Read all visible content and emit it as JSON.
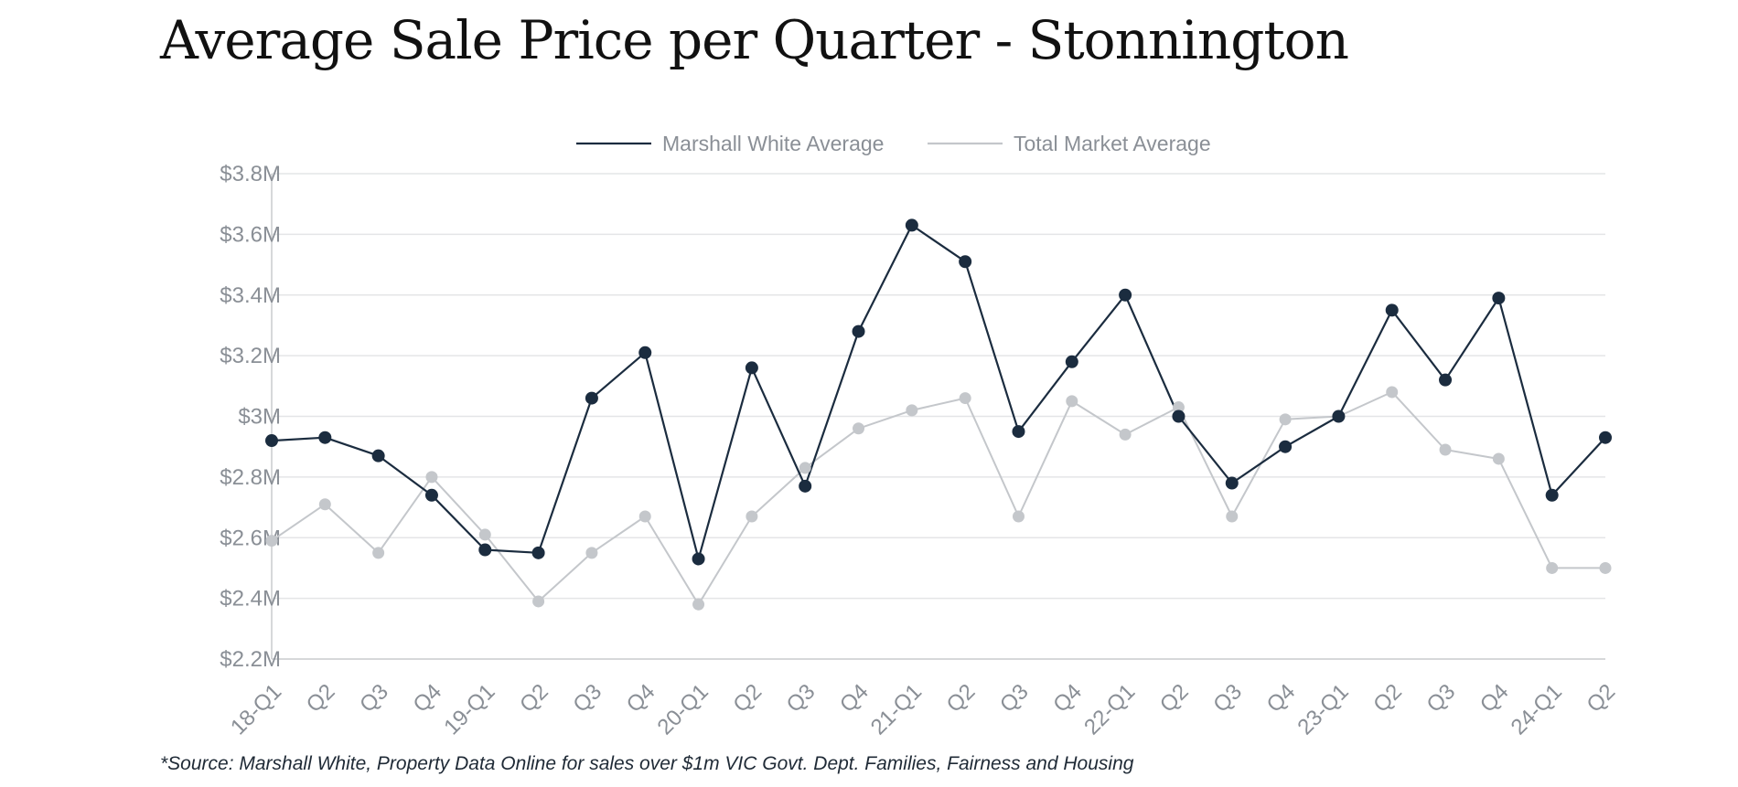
{
  "title": "Average Sale Price per Quarter - Stonnington",
  "source": "*Source: Marshall White, Property Data Online for sales over $1m VIC Govt. Dept. Families, Fairness and Housing",
  "colors": {
    "marshall_white": "#1b2c3f",
    "total_market": "#c4c7cb",
    "grid": "#e4e5e7",
    "axis": "#c9cbce",
    "tick_text": "#8a8f96"
  },
  "chart_data": {
    "type": "line",
    "categories": [
      "18-Q1",
      "Q2",
      "Q3",
      "Q4",
      "19-Q1",
      "Q2",
      "Q3",
      "Q4",
      "20-Q1",
      "Q2",
      "Q3",
      "Q4",
      "21-Q1",
      "Q2",
      "Q3",
      "Q4",
      "22-Q1",
      "Q2",
      "Q3",
      "Q4",
      "23-Q1",
      "Q2",
      "Q3",
      "Q4",
      "24-Q1",
      "Q2"
    ],
    "y_tick_labels": [
      "$2.2M",
      "$2.4M",
      "$2.6M",
      "$2.8M",
      "$3M",
      "$3.2M",
      "$3.4M",
      "$3.6M",
      "$3.8M"
    ],
    "ylim": [
      2.2,
      3.8
    ],
    "y_unit": "$M",
    "grid": true,
    "legend_position": "top-center",
    "series": [
      {
        "name": "Marshall White Average",
        "color": "#1b2c3f",
        "values": [
          2.92,
          2.93,
          2.87,
          2.74,
          2.56,
          2.55,
          3.06,
          3.21,
          2.53,
          3.16,
          2.77,
          3.28,
          3.63,
          3.51,
          2.95,
          3.18,
          3.4,
          3.0,
          2.78,
          2.9,
          3.0,
          3.35,
          3.12,
          3.39,
          2.74,
          2.93
        ]
      },
      {
        "name": "Total Market Average",
        "color": "#c4c7cb",
        "values": [
          2.59,
          2.71,
          2.55,
          2.8,
          2.61,
          2.39,
          2.55,
          2.67,
          2.38,
          2.67,
          2.83,
          2.96,
          3.02,
          3.06,
          2.67,
          3.05,
          2.94,
          3.03,
          2.67,
          2.99,
          3.0,
          3.08,
          2.89,
          2.86,
          2.5,
          2.5
        ]
      }
    ]
  }
}
